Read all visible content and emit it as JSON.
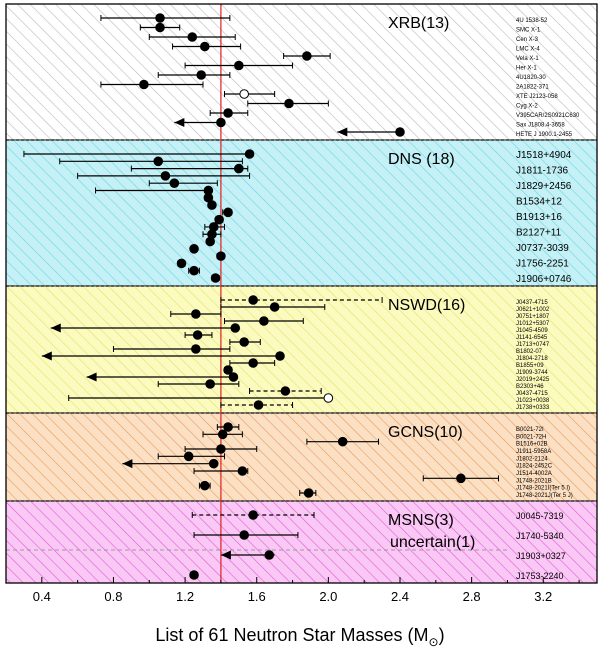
{
  "chart_data": {
    "type": "scatter",
    "title": "",
    "xlabel": "List of 61 Neutron Star Masses (M",
    "xlabel_sub": "⊙",
    "xlabel_close": ")",
    "ylabel": "",
    "xlim": [
      0.2,
      3.5
    ],
    "xticks": [
      "0.4",
      "0.8",
      "1.2",
      "1.6",
      "2.0",
      "2.4",
      "2.8",
      "3.2"
    ],
    "reference_line": 1.4,
    "panels": [
      {
        "label": "XRB(13)",
        "fill": "#ffffff",
        "hatch": "#bbbbbb",
        "name_size": 6,
        "stars": [
          {
            "name": "4U 1538-52",
            "mass": 1.06,
            "lo": 0.73,
            "hi": 1.45
          },
          {
            "name": "SMC X-1",
            "mass": 1.06,
            "lo": 0.95,
            "hi": 1.17
          },
          {
            "name": "Cen X-3",
            "mass": 1.24,
            "lo": 1.0,
            "hi": 1.48
          },
          {
            "name": "LMC X-4",
            "mass": 1.31,
            "lo": 1.13,
            "hi": 1.51
          },
          {
            "name": "Vela X-1",
            "mass": 1.88,
            "lo": 1.75,
            "hi": 2.01
          },
          {
            "name": "Her X-1",
            "mass": 1.5,
            "lo": 1.2,
            "hi": 1.8
          },
          {
            "name": "4U1820-30",
            "mass": 1.29,
            "lo": 1.05,
            "hi": 1.45
          },
          {
            "name": "2A1822-371",
            "mass": 0.97,
            "lo": 0.73,
            "hi": 1.3
          },
          {
            "name": "XTE J2123-058",
            "mass": 1.53,
            "lo": 1.42,
            "hi": 1.7,
            "open": true
          },
          {
            "name": "Cyg X-2",
            "mass": 1.78,
            "lo": 1.55,
            "hi": 2.0
          },
          {
            "name": "V395CAR/2S0921C630",
            "mass": 1.44,
            "lo": 1.34,
            "hi": 1.55
          },
          {
            "name": "Sax J1808.4-3658",
            "mass": 1.4,
            "lo": 1.14,
            "hi": 1.4,
            "upper": true
          },
          {
            "name": "HETE J 1900.1-2455",
            "mass": 2.4,
            "lo": 2.05,
            "hi": 2.4,
            "upper": true
          }
        ]
      },
      {
        "label": "DNS (18)",
        "fill": "#c5f0f5",
        "hatch": "#66d9e8",
        "name_size": 10,
        "stars": [
          {
            "name": "J1518+4904",
            "mass": 1.56,
            "lo": 0.3,
            "hi": 1.57
          },
          {
            "name": "",
            "mass": 1.05,
            "lo": 0.5,
            "hi": 1.52
          },
          {
            "name": "J1811-1736",
            "mass": 1.5,
            "lo": 0.9,
            "hi": 1.55
          },
          {
            "name": "",
            "mass": 1.09,
            "lo": 0.6,
            "hi": 1.56
          },
          {
            "name": "J1829+2456",
            "mass": 1.14,
            "lo": 1.0,
            "hi": 1.38
          },
          {
            "name": "",
            "mass": 1.33,
            "lo": 0.7,
            "hi": 1.34
          },
          {
            "name": "B1534+12",
            "mass": 1.33,
            "lo": 1.31,
            "hi": 1.35
          },
          {
            "name": "",
            "mass": 1.35,
            "lo": 1.33,
            "hi": 1.36
          },
          {
            "name": "B1913+16",
            "mass": 1.44,
            "lo": 1.41,
            "hi": 1.46
          },
          {
            "name": "",
            "mass": 1.39,
            "lo": 1.37,
            "hi": 1.41
          },
          {
            "name": "B2127+11",
            "mass": 1.36,
            "lo": 1.31,
            "hi": 1.42
          },
          {
            "name": "",
            "mass": 1.35,
            "lo": 1.3,
            "hi": 1.4
          },
          {
            "name": "J0737-3039",
            "mass": 1.34,
            "lo": 1.33,
            "hi": 1.35
          },
          {
            "name": "",
            "mass": 1.25,
            "lo": 1.24,
            "hi": 1.26
          },
          {
            "name": "J1756-2251",
            "mass": 1.4,
            "lo": 1.38,
            "hi": 1.42
          },
          {
            "name": "",
            "mass": 1.18,
            "lo": 1.16,
            "hi": 1.2
          },
          {
            "name": "J1906+0746",
            "mass": 1.25,
            "lo": 1.22,
            "hi": 1.28
          },
          {
            "name": "",
            "mass": 1.37,
            "lo": 1.35,
            "hi": 1.39
          }
        ]
      },
      {
        "label": "NSWD(16)",
        "fill": "#fbfbc0",
        "hatch": "#e8e06a",
        "name_size": 6,
        "stars": [
          {
            "name": "J0437-4715",
            "mass": 1.58,
            "lo": 1.4,
            "hi": 2.3,
            "dashed": true
          },
          {
            "name": "J0621+1002",
            "mass": 1.7,
            "lo": 1.4,
            "hi": 1.98
          },
          {
            "name": "J0751+1807",
            "mass": 1.26,
            "lo": 1.12,
            "hi": 1.4
          },
          {
            "name": "J1012+5307",
            "mass": 1.64,
            "lo": 1.42,
            "hi": 1.86
          },
          {
            "name": "J1045-4509",
            "mass": 1.48,
            "lo": 0.45,
            "hi": 1.48,
            "upper": true
          },
          {
            "name": "J1141-6545",
            "mass": 1.27,
            "lo": 1.2,
            "hi": 1.35
          },
          {
            "name": "J1713+0747",
            "mass": 1.53,
            "lo": 1.45,
            "hi": 1.62
          },
          {
            "name": "B1802-07",
            "mass": 1.26,
            "lo": 0.8,
            "hi": 1.45
          },
          {
            "name": "J1804-2718",
            "mass": 1.73,
            "lo": 0.4,
            "hi": 1.73,
            "upper": true
          },
          {
            "name": "B1855+09",
            "mass": 1.58,
            "lo": 1.45,
            "hi": 1.7
          },
          {
            "name": "J1909-3744",
            "mass": 1.44,
            "lo": 1.42,
            "hi": 1.46
          },
          {
            "name": "J2019+2425",
            "mass": 1.47,
            "lo": 0.65,
            "hi": 1.47,
            "upper": true
          },
          {
            "name": "B2303+46",
            "mass": 1.34,
            "lo": 1.05,
            "hi": 1.5
          },
          {
            "name": "J0437-4715",
            "mass": 1.76,
            "lo": 1.56,
            "hi": 1.96,
            "dashed": true
          },
          {
            "name": "J1023+0038",
            "mass": 2.0,
            "lo": 0.55,
            "hi": 2.0,
            "open": true
          },
          {
            "name": "J1738+0333",
            "mass": 1.61,
            "lo": 1.4,
            "hi": 1.8,
            "dashed": true
          }
        ]
      },
      {
        "label": "GCNS(10)",
        "fill": "#fbe0c4",
        "hatch": "#e89a5a",
        "name_size": 6,
        "stars": [
          {
            "name": "B0021-72I",
            "mass": 1.44,
            "lo": 1.38,
            "hi": 1.5
          },
          {
            "name": "B0021-72H",
            "mass": 1.41,
            "lo": 1.3,
            "hi": 1.52
          },
          {
            "name": "B1516+02B",
            "mass": 2.08,
            "lo": 1.88,
            "hi": 2.28
          },
          {
            "name": "J1911-5958A",
            "mass": 1.4,
            "lo": 1.2,
            "hi": 1.6
          },
          {
            "name": "J1802-2124",
            "mass": 1.22,
            "lo": 1.05,
            "hi": 1.42
          },
          {
            "name": "J1824-2452C",
            "mass": 1.36,
            "lo": 0.85,
            "hi": 1.36,
            "upper": true
          },
          {
            "name": "J1514-4002A",
            "mass": 1.52,
            "lo": 1.25,
            "hi": 1.55
          },
          {
            "name": "J1748-2021B",
            "mass": 2.74,
            "lo": 2.53,
            "hi": 2.95
          },
          {
            "name": "J1748-2021I(Ter 5 I)",
            "mass": 1.31,
            "lo": 1.28,
            "hi": 1.34
          },
          {
            "name": "J1748-2021J(Ter 5 J)",
            "mass": 1.89,
            "lo": 1.84,
            "hi": 1.93
          }
        ]
      },
      {
        "label": "MSNS(3)",
        "label2": "uncertain(1)",
        "fill": "#fac8f5",
        "hatch": "#e25ad8",
        "name_size": 9,
        "stars": [
          {
            "name": "J0045-7319",
            "mass": 1.58,
            "lo": 1.24,
            "hi": 1.92,
            "dashed": true
          },
          {
            "name": "J1740-5340",
            "mass": 1.53,
            "lo": 1.25,
            "hi": 1.83
          },
          {
            "name": "J1903+0327",
            "mass": 1.67,
            "lo": 1.4,
            "hi": 1.7,
            "upper": true
          },
          {
            "name": "J1753-2240",
            "mass": 1.25,
            "lo": 1.23,
            "hi": 1.27
          }
        ]
      }
    ]
  }
}
